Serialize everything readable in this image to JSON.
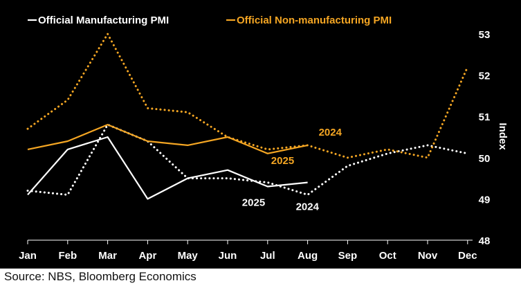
{
  "source": "Source: NBS, Bloomberg Economics",
  "colors": {
    "background": "#000000",
    "manufacturing": "#ffffff",
    "non_manufacturing": "#f5a623",
    "axis": "#ffffff"
  },
  "chart_data": {
    "type": "line",
    "x": [
      "Jan",
      "Feb",
      "Mar",
      "Apr",
      "May",
      "Jun",
      "Jul",
      "Aug",
      "Sep",
      "Oct",
      "Nov",
      "Dec"
    ],
    "ylabel": "Index",
    "ylim": [
      48,
      53
    ],
    "yticks": [
      48,
      49,
      50,
      51,
      52,
      53
    ],
    "y_axis_side": "right",
    "grid": false,
    "legend_position": "top-left",
    "legend": [
      {
        "label": "Official Manufacturing PMI",
        "color": "#ffffff"
      },
      {
        "label": "Official Non-manufacturing PMI",
        "color": "#f5a623"
      }
    ],
    "series": [
      {
        "group": "Official Manufacturing PMI",
        "year": "2025",
        "style": "solid",
        "color": "#ffffff",
        "values": [
          49.1,
          50.2,
          50.5,
          49.0,
          49.5,
          49.7,
          49.3,
          49.4,
          null,
          null,
          null,
          null
        ]
      },
      {
        "group": "Official Manufacturing PMI",
        "year": "2024",
        "style": "dotted",
        "color": "#ffffff",
        "values": [
          49.2,
          49.1,
          50.8,
          50.4,
          49.5,
          49.5,
          49.4,
          49.1,
          49.8,
          50.1,
          50.3,
          50.1
        ]
      },
      {
        "group": "Official Non-manufacturing PMI",
        "year": "2025",
        "style": "solid",
        "color": "#f5a623",
        "values": [
          50.2,
          50.4,
          50.8,
          50.4,
          50.3,
          50.5,
          50.1,
          50.3,
          null,
          null,
          null,
          null
        ]
      },
      {
        "group": "Official Non-manufacturing PMI",
        "year": "2024",
        "style": "dotted",
        "color": "#f5a623",
        "values": [
          50.7,
          51.4,
          53.0,
          51.2,
          51.1,
          50.5,
          50.2,
          50.3,
          50.0,
          50.2,
          50.0,
          52.2
        ]
      }
    ],
    "annotations": [
      {
        "text": "2024",
        "color": "#f5a623",
        "near": {
          "x": "Aug",
          "y": 50.3
        }
      },
      {
        "text": "2025",
        "color": "#f5a623",
        "near": {
          "x": "Jul",
          "y": 50.1
        }
      },
      {
        "text": "2025",
        "color": "#ffffff",
        "near": {
          "x": "Jul",
          "y": 49.3
        }
      },
      {
        "text": "2024",
        "color": "#ffffff",
        "near": {
          "x": "Aug",
          "y": 49.1
        }
      }
    ]
  }
}
